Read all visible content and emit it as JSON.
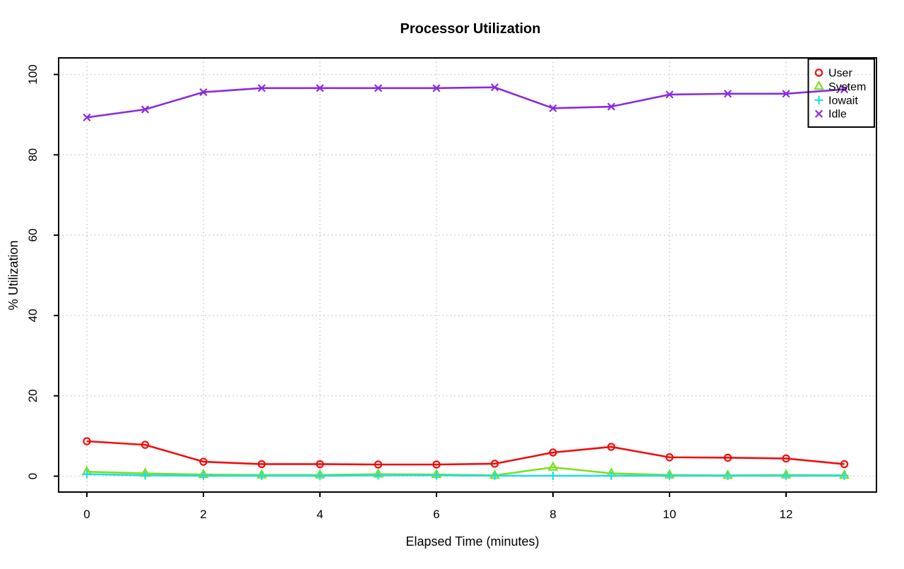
{
  "page": {
    "background": "#FFFFFF",
    "text_color": "#000000",
    "grid_color": "#D3D3D3",
    "box_color": "#000000"
  },
  "chart_data": {
    "type": "line",
    "title": "Processor Utilization",
    "xlabel": "Elapsed Time (minutes)",
    "ylabel": "% Utilization",
    "x": [
      0,
      1,
      2,
      3,
      4,
      5,
      6,
      7,
      8,
      9,
      10,
      11,
      12,
      13
    ],
    "xtick_labels": [
      "0",
      "2",
      "4",
      "6",
      "8",
      "10",
      "12"
    ],
    "xticks": [
      0,
      2,
      4,
      6,
      8,
      10,
      12
    ],
    "ytick_labels": [
      "0",
      "20",
      "40",
      "60",
      "80",
      "100"
    ],
    "yticks": [
      0,
      20,
      40,
      60,
      80,
      100
    ],
    "xlim": [
      -0.52,
      13.52
    ],
    "ylim": [
      -4,
      104
    ],
    "grid": "dotted",
    "legend_position": "topright",
    "legend_labels": [
      "User",
      "System",
      "Iowait",
      "Idle"
    ],
    "series": [
      {
        "name": "User",
        "marker": "circle",
        "color": "#F20D0D",
        "values": [
          8.7,
          7.8,
          3.6,
          3.0,
          3.0,
          2.9,
          2.9,
          3.1,
          5.9,
          7.3,
          4.7,
          4.6,
          4.4,
          3.0
        ]
      },
      {
        "name": "System",
        "marker": "triangle",
        "color": "#7CE021",
        "values": [
          1.1,
          0.7,
          0.4,
          0.3,
          0.3,
          0.5,
          0.4,
          0.2,
          2.2,
          0.7,
          0.3,
          0.2,
          0.3,
          0.2
        ]
      },
      {
        "name": "Iowait",
        "marker": "plus",
        "color": "#20DDE8",
        "values": [
          0.5,
          0.2,
          0.1,
          0.1,
          0.1,
          0.2,
          0.2,
          0.1,
          0.1,
          0.1,
          0.1,
          0.1,
          0.1,
          0.1
        ]
      },
      {
        "name": "Idle",
        "marker": "x",
        "color": "#8A2BE2",
        "values": [
          89.3,
          91.3,
          95.6,
          96.6,
          96.6,
          96.6,
          96.6,
          96.8,
          91.6,
          92.0,
          95.0,
          95.2,
          95.2,
          96.3
        ]
      }
    ]
  }
}
